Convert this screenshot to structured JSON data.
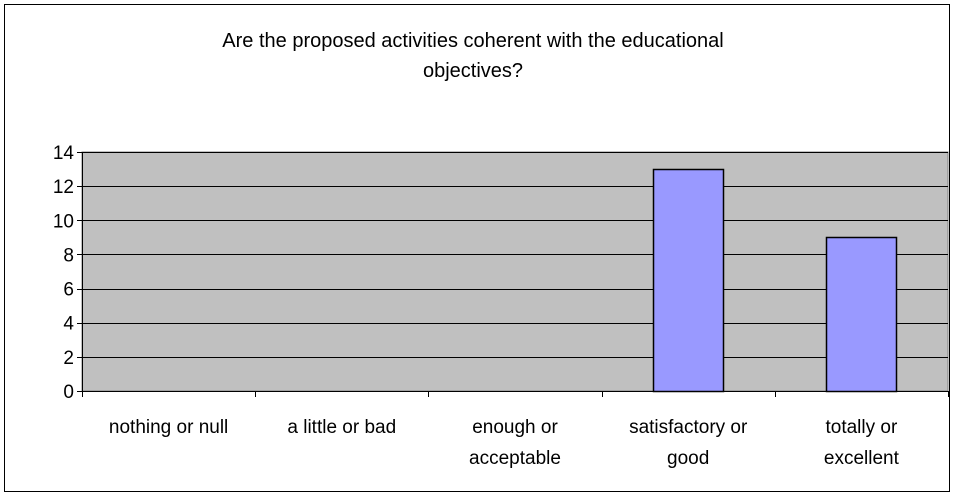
{
  "chart_data": {
    "type": "bar",
    "title_lines": [
      "Are the proposed activities coherent with the educational",
      "objectives?"
    ],
    "categories": [
      [
        "nothing or null"
      ],
      [
        "a little or bad"
      ],
      [
        "enough or",
        "acceptable"
      ],
      [
        "satisfactory or",
        "good"
      ],
      [
        "totally or",
        "excellent"
      ]
    ],
    "values": [
      0,
      0,
      0,
      13,
      9
    ],
    "ylim": [
      0,
      14
    ],
    "yticks": [
      0,
      2,
      4,
      6,
      8,
      10,
      12,
      14
    ],
    "grid": true,
    "colors": {
      "plot_bg": "#c0c0c0",
      "bar_fill": "#9999ff",
      "bar_stroke": "#000000",
      "gridline": "#000000"
    }
  }
}
